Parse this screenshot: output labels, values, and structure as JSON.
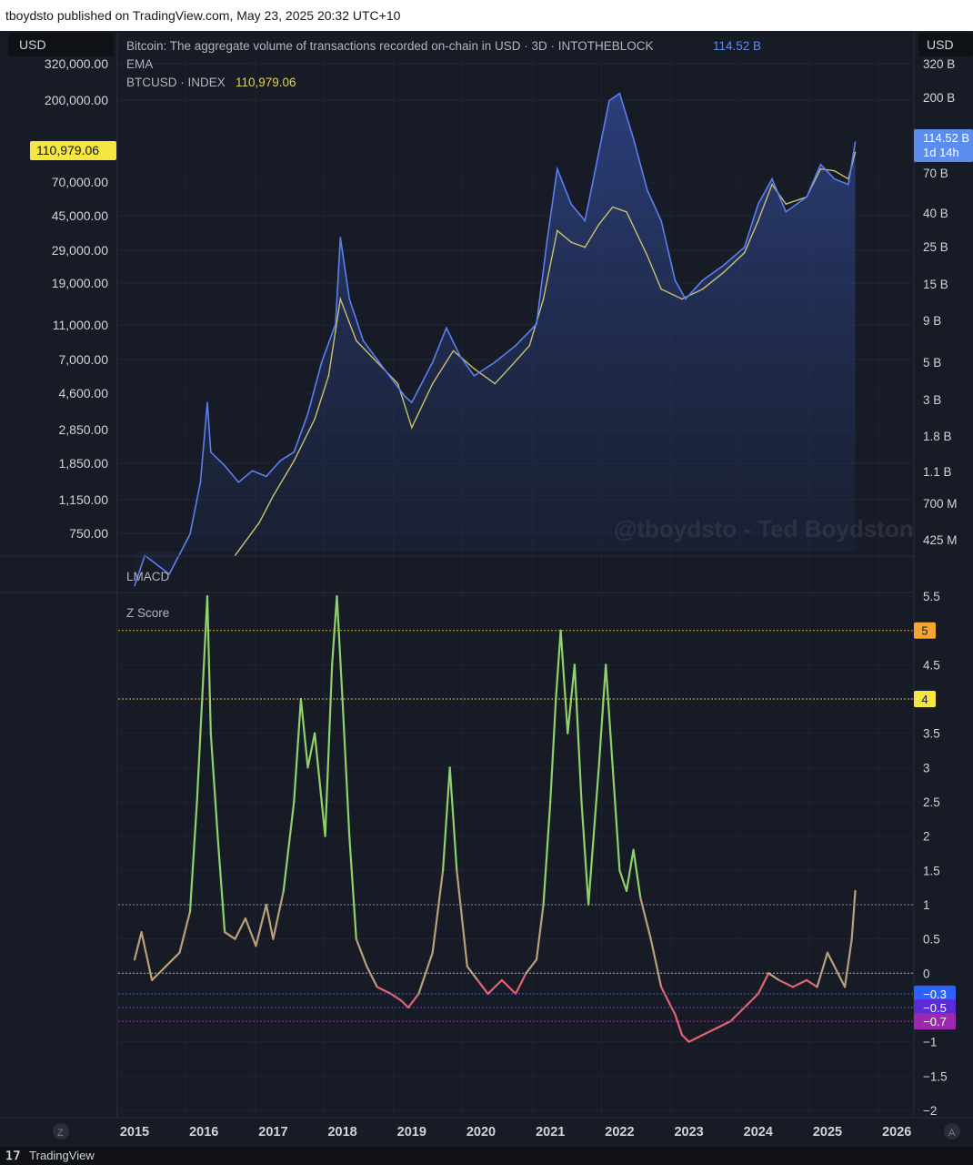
{
  "header": {
    "published_text": "tboydsto published on TradingView.com, May 23, 2025 20:32 UTC+10"
  },
  "currency_left": "USD",
  "currency_right": "USD",
  "legend": {
    "series1_title": "Bitcoin: The aggregate volume of transactions recorded on-chain in USD · 3D · INTOTHEBLOCK",
    "series1_value": "114.52 B",
    "series2_title": "EMA",
    "series3_title": "BTCUSD · INDEX",
    "series3_value": "110,979.06"
  },
  "watermark": "@tboydsto - Ted Boydston",
  "pane2_title": "LMACD",
  "pane3_title": "Z Score",
  "price_badge_left": "110,979.06",
  "price_badge_right_line1": "114.52 B",
  "price_badge_right_line2": "1d 14h",
  "left_axis_labels": [
    "320,000.00",
    "200,000.00",
    "70,000.00",
    "45,000.00",
    "29,000.00",
    "19,000.00",
    "11,000.00",
    "7,000.00",
    "4,600.00",
    "2,850.00",
    "1,850.00",
    "1,150.00",
    "750.00"
  ],
  "right_axis_labels": [
    "320 B",
    "200 B",
    "70 B",
    "40 B",
    "25 B",
    "15 B",
    "9 B",
    "5 B",
    "3 B",
    "1.8 B",
    "1.1 B",
    "700 M",
    "425 M"
  ],
  "z_axis_labels": [
    "5.5",
    "4.5",
    "3.5",
    "3",
    "2.5",
    "2",
    "1.5",
    "1",
    "0.5",
    "0",
    "−1",
    "−1.5",
    "−2"
  ],
  "z_badges": [
    {
      "label": "5",
      "color": "#f7a531",
      "text_color": "#131722"
    },
    {
      "label": "4",
      "color": "#f5e642",
      "text_color": "#131722"
    },
    {
      "label": "−0.3",
      "color": "#2962ff",
      "text_color": "#ffffff"
    },
    {
      "label": "−0.5",
      "color": "#5b2bd6",
      "text_color": "#ffffff"
    },
    {
      "label": "−0.7",
      "color": "#9c27b0",
      "text_color": "#ffffff"
    }
  ],
  "time_labels": [
    "2015",
    "2016",
    "2017",
    "2018",
    "2019",
    "2020",
    "2021",
    "2022",
    "2023",
    "2024",
    "2025",
    "2026"
  ],
  "corner_left": "Z",
  "corner_right": "A",
  "footer_brand": "TradingView",
  "colors": {
    "volume": "#5b7ff0",
    "ema": "#c9c16e",
    "z_high": "#8fd16a",
    "z_mid": "#b9a07a",
    "z_low": "#e06474",
    "badge_left": "#f5e642",
    "badge_right": "#5b8def"
  },
  "chart_data": [
    {
      "type": "line",
      "title": "Bitcoin: The aggregate volume of transactions recorded on-chain in USD · 3D · INTOTHEBLOCK",
      "y_scale": "log",
      "series": [
        {
          "name": "Bitcoin: The aggregate volume of transactions recorded on-chain in USD",
          "axis": "right",
          "unit": "USD",
          "points": [
            [
              "2015.0",
              0.3
            ],
            [
              "2015.15",
              0.45
            ],
            [
              "2015.5",
              0.35
            ],
            [
              "2015.8",
              0.6
            ],
            [
              "2015.95",
              1.2
            ],
            [
              "2016.05",
              3.5
            ],
            [
              "2016.1",
              1.8
            ],
            [
              "2016.3",
              1.5
            ],
            [
              "2016.5",
              1.2
            ],
            [
              "2016.7",
              1.4
            ],
            [
              "2016.9",
              1.3
            ],
            [
              "2017.1",
              1.6
            ],
            [
              "2017.3",
              1.8
            ],
            [
              "2017.5",
              3.0
            ],
            [
              "2017.7",
              6.0
            ],
            [
              "2017.9",
              10.0
            ],
            [
              "2017.97",
              32.0
            ],
            [
              "2018.1",
              14.0
            ],
            [
              "2018.3",
              8.0
            ],
            [
              "2018.6",
              5.5
            ],
            [
              "2018.9",
              3.8
            ],
            [
              "2019.0",
              3.5
            ],
            [
              "2019.3",
              6.0
            ],
            [
              "2019.5",
              9.5
            ],
            [
              "2019.7",
              6.5
            ],
            [
              "2019.9",
              5.0
            ],
            [
              "2020.2",
              6.0
            ],
            [
              "2020.5",
              7.5
            ],
            [
              "2020.8",
              10.0
            ],
            [
              "2020.95",
              30.0
            ],
            [
              "2021.1",
              80.0
            ],
            [
              "2021.3",
              50.0
            ],
            [
              "2021.5",
              40.0
            ],
            [
              "2021.7",
              100.0
            ],
            [
              "2021.85",
              200.0
            ],
            [
              "2022.0",
              220.0
            ],
            [
              "2022.2",
              120.0
            ],
            [
              "2022.4",
              60.0
            ],
            [
              "2022.6",
              40.0
            ],
            [
              "2022.8",
              18.0
            ],
            [
              "2022.95",
              14.0
            ],
            [
              "2023.2",
              18.0
            ],
            [
              "2023.5",
              22.0
            ],
            [
              "2023.8",
              28.0
            ],
            [
              "2024.0",
              50.0
            ],
            [
              "2024.2",
              70.0
            ],
            [
              "2024.4",
              45.0
            ],
            [
              "2024.7",
              55.0
            ],
            [
              "2024.9",
              85.0
            ],
            [
              "2025.1",
              70.0
            ],
            [
              "2025.3",
              65.0
            ],
            [
              "2025.4",
              114.52
            ]
          ]
        },
        {
          "name": "EMA",
          "axis": "right",
          "unit": "USD",
          "points": [
            [
              "2016.45",
              0.45
            ],
            [
              "2016.8",
              0.7
            ],
            [
              "2017.0",
              1.0
            ],
            [
              "2017.3",
              1.6
            ],
            [
              "2017.6",
              2.8
            ],
            [
              "2017.8",
              5.0
            ],
            [
              "2017.97",
              14.0
            ],
            [
              "2018.2",
              8.0
            ],
            [
              "2018.5",
              6.0
            ],
            [
              "2018.8",
              4.5
            ],
            [
              "2019.0",
              2.5
            ],
            [
              "2019.3",
              4.5
            ],
            [
              "2019.6",
              7.0
            ],
            [
              "2019.9",
              5.5
            ],
            [
              "2020.2",
              4.5
            ],
            [
              "2020.4",
              5.5
            ],
            [
              "2020.7",
              7.5
            ],
            [
              "2020.9",
              14.0
            ],
            [
              "2021.1",
              35.0
            ],
            [
              "2021.3",
              30.0
            ],
            [
              "2021.5",
              28.0
            ],
            [
              "2021.7",
              38.0
            ],
            [
              "2021.9",
              48.0
            ],
            [
              "2022.1",
              45.0
            ],
            [
              "2022.4",
              25.0
            ],
            [
              "2022.6",
              16.0
            ],
            [
              "2022.9",
              14.0
            ],
            [
              "2023.2",
              16.0
            ],
            [
              "2023.5",
              20.0
            ],
            [
              "2023.8",
              26.0
            ],
            [
              "2024.0",
              40.0
            ],
            [
              "2024.2",
              65.0
            ],
            [
              "2024.4",
              50.0
            ],
            [
              "2024.7",
              55.0
            ],
            [
              "2024.9",
              80.0
            ],
            [
              "2025.1",
              78.0
            ],
            [
              "2025.3",
              70.0
            ],
            [
              "2025.4",
              100.0
            ]
          ]
        }
      ],
      "left_axis": {
        "name": "BTCUSD · INDEX",
        "last_value": 110979.06
      },
      "grid": true
    },
    {
      "type": "line",
      "title": "LMACD"
    },
    {
      "type": "line",
      "title": "Z Score",
      "ylim": [
        -2,
        5.5
      ],
      "reference_lines": [
        5,
        4,
        1,
        0,
        -0.3,
        -0.5,
        -0.7
      ],
      "series": [
        {
          "name": "Z Score",
          "points": [
            [
              "2015.0",
              0.2
            ],
            [
              "2015.1",
              0.6
            ],
            [
              "2015.25",
              -0.1
            ],
            [
              "2015.45",
              0.1
            ],
            [
              "2015.65",
              0.3
            ],
            [
              "2015.8",
              0.9
            ],
            [
              "2015.9",
              2.5
            ],
            [
              "2016.0",
              4.5
            ],
            [
              "2016.05",
              5.5
            ],
            [
              "2016.1",
              3.5
            ],
            [
              "2016.2",
              2.0
            ],
            [
              "2016.3",
              0.6
            ],
            [
              "2016.45",
              0.5
            ],
            [
              "2016.6",
              0.8
            ],
            [
              "2016.75",
              0.4
            ],
            [
              "2016.9",
              1.0
            ],
            [
              "2017.0",
              0.5
            ],
            [
              "2017.15",
              1.2
            ],
            [
              "2017.3",
              2.5
            ],
            [
              "2017.4",
              4.0
            ],
            [
              "2017.5",
              3.0
            ],
            [
              "2017.6",
              3.5
            ],
            [
              "2017.75",
              2.0
            ],
            [
              "2017.85",
              4.5
            ],
            [
              "2017.92",
              5.5
            ],
            [
              "2018.0",
              4.0
            ],
            [
              "2018.1",
              2.0
            ],
            [
              "2018.2",
              0.5
            ],
            [
              "2018.35",
              0.1
            ],
            [
              "2018.5",
              -0.2
            ],
            [
              "2018.7",
              -0.3
            ],
            [
              "2018.85",
              -0.4
            ],
            [
              "2018.95",
              -0.5
            ],
            [
              "2019.1",
              -0.3
            ],
            [
              "2019.3",
              0.3
            ],
            [
              "2019.45",
              1.5
            ],
            [
              "2019.55",
              3.0
            ],
            [
              "2019.65",
              1.5
            ],
            [
              "2019.8",
              0.1
            ],
            [
              "2019.95",
              -0.1
            ],
            [
              "2020.1",
              -0.3
            ],
            [
              "2020.3",
              -0.1
            ],
            [
              "2020.5",
              -0.3
            ],
            [
              "2020.65",
              0.0
            ],
            [
              "2020.8",
              0.2
            ],
            [
              "2020.9",
              1.0
            ],
            [
              "2021.0",
              2.5
            ],
            [
              "2021.08",
              4.0
            ],
            [
              "2021.15",
              5.0
            ],
            [
              "2021.25",
              3.5
            ],
            [
              "2021.35",
              4.5
            ],
            [
              "2021.45",
              2.5
            ],
            [
              "2021.55",
              1.0
            ],
            [
              "2021.7",
              3.0
            ],
            [
              "2021.8",
              4.5
            ],
            [
              "2021.9",
              3.0
            ],
            [
              "2022.0",
              1.5
            ],
            [
              "2022.1",
              1.2
            ],
            [
              "2022.2",
              1.8
            ],
            [
              "2022.3",
              1.1
            ],
            [
              "2022.45",
              0.5
            ],
            [
              "2022.6",
              -0.2
            ],
            [
              "2022.7",
              -0.4
            ],
            [
              "2022.8",
              -0.6
            ],
            [
              "2022.9",
              -0.9
            ],
            [
              "2023.0",
              -1.0
            ],
            [
              "2023.2",
              -0.9
            ],
            [
              "2023.4",
              -0.8
            ],
            [
              "2023.6",
              -0.7
            ],
            [
              "2023.8",
              -0.5
            ],
            [
              "2024.0",
              -0.3
            ],
            [
              "2024.15",
              0.0
            ],
            [
              "2024.3",
              -0.1
            ],
            [
              "2024.5",
              -0.2
            ],
            [
              "2024.7",
              -0.1
            ],
            [
              "2024.85",
              -0.2
            ],
            [
              "2025.0",
              0.3
            ],
            [
              "2025.15",
              0.0
            ],
            [
              "2025.25",
              -0.2
            ],
            [
              "2025.35",
              0.5
            ],
            [
              "2025.4",
              1.2
            ]
          ]
        }
      ],
      "grid": true
    }
  ]
}
